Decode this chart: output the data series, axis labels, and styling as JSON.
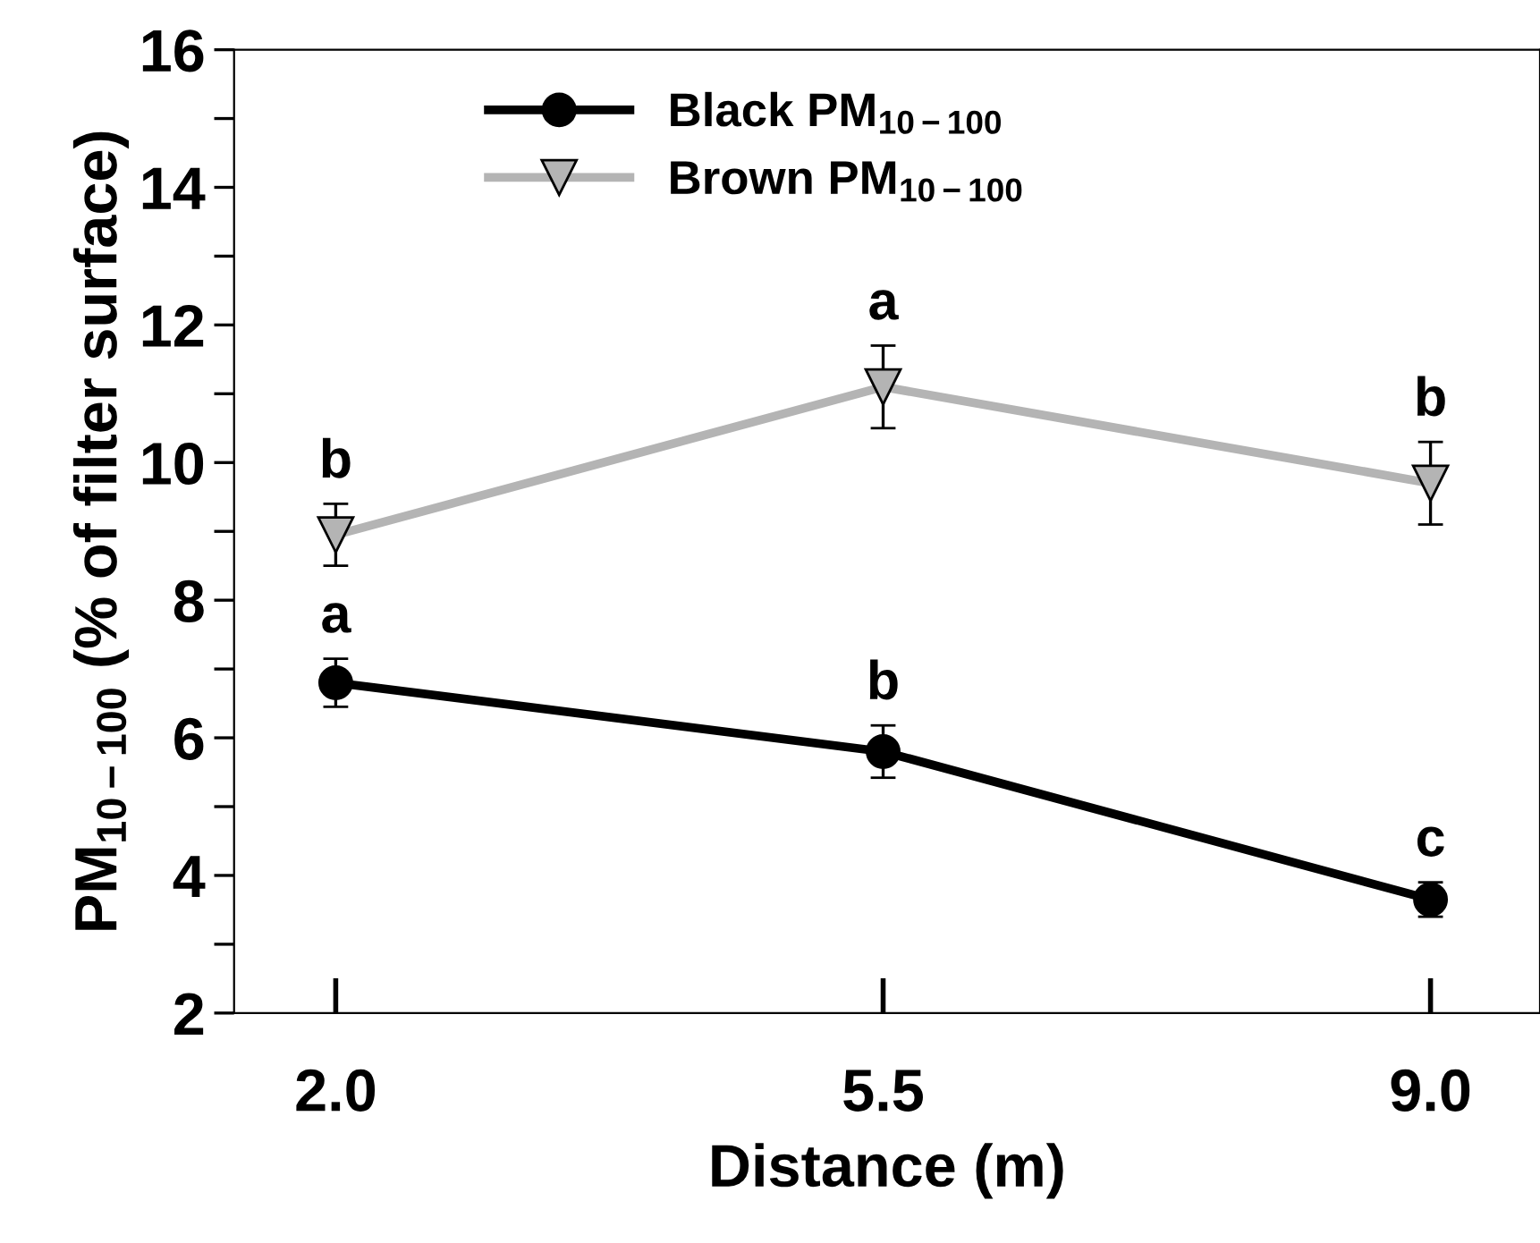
{
  "chart_data": {
    "type": "line",
    "xlabel": "Distance (m)",
    "ylabel": "PM$_{10−100}$ (% of filter surface)",
    "x": [
      2.0,
      5.5,
      9.0
    ],
    "series": [
      {
        "name": "Black PM$_{10−100}$",
        "color": "#000000",
        "marker": "circle",
        "values": [
          6.8,
          5.8,
          3.65
        ],
        "errors": [
          0.35,
          0.38,
          0.25
        ]
      },
      {
        "name": "Brown PM$_{10−100}$",
        "color": "#b4b4b4",
        "marker": "triangle",
        "values": [
          8.95,
          11.1,
          9.7
        ],
        "errors": [
          0.45,
          0.6,
          0.6
        ]
      }
    ],
    "annotations": [
      {
        "text": "a",
        "x": 2.0,
        "y": 6.8
      },
      {
        "text": "b",
        "x": 5.5,
        "y": 5.8
      },
      {
        "text": "c",
        "x": 9.0,
        "y": 3.65
      },
      {
        "text": "b",
        "x": 2.0,
        "y": 8.95
      },
      {
        "text": "a",
        "x": 5.5,
        "y": 11.1
      },
      {
        "text": "b",
        "x": 9.0,
        "y": 9.7
      }
    ],
    "xlim": [
      1.35,
      9.7
    ],
    "ylim": [
      2,
      16
    ],
    "xticks": [
      {
        "value": 2.0,
        "label": "2.0"
      },
      {
        "value": 5.5,
        "label": "5.5"
      },
      {
        "value": 9.0,
        "label": "9.0"
      }
    ],
    "yticks": [
      2,
      {
        "value": 3,
        "label": null
      },
      4,
      {
        "value": 5,
        "label": null
      },
      6,
      {
        "value": 7,
        "label": null
      },
      8,
      {
        "value": 9,
        "label": null
      },
      10,
      {
        "value": 11,
        "label": null
      },
      12,
      {
        "value": 13,
        "label": null
      },
      14,
      {
        "value": 15,
        "label": null
      },
      16
    ],
    "legend": "top",
    "grid": false
  }
}
